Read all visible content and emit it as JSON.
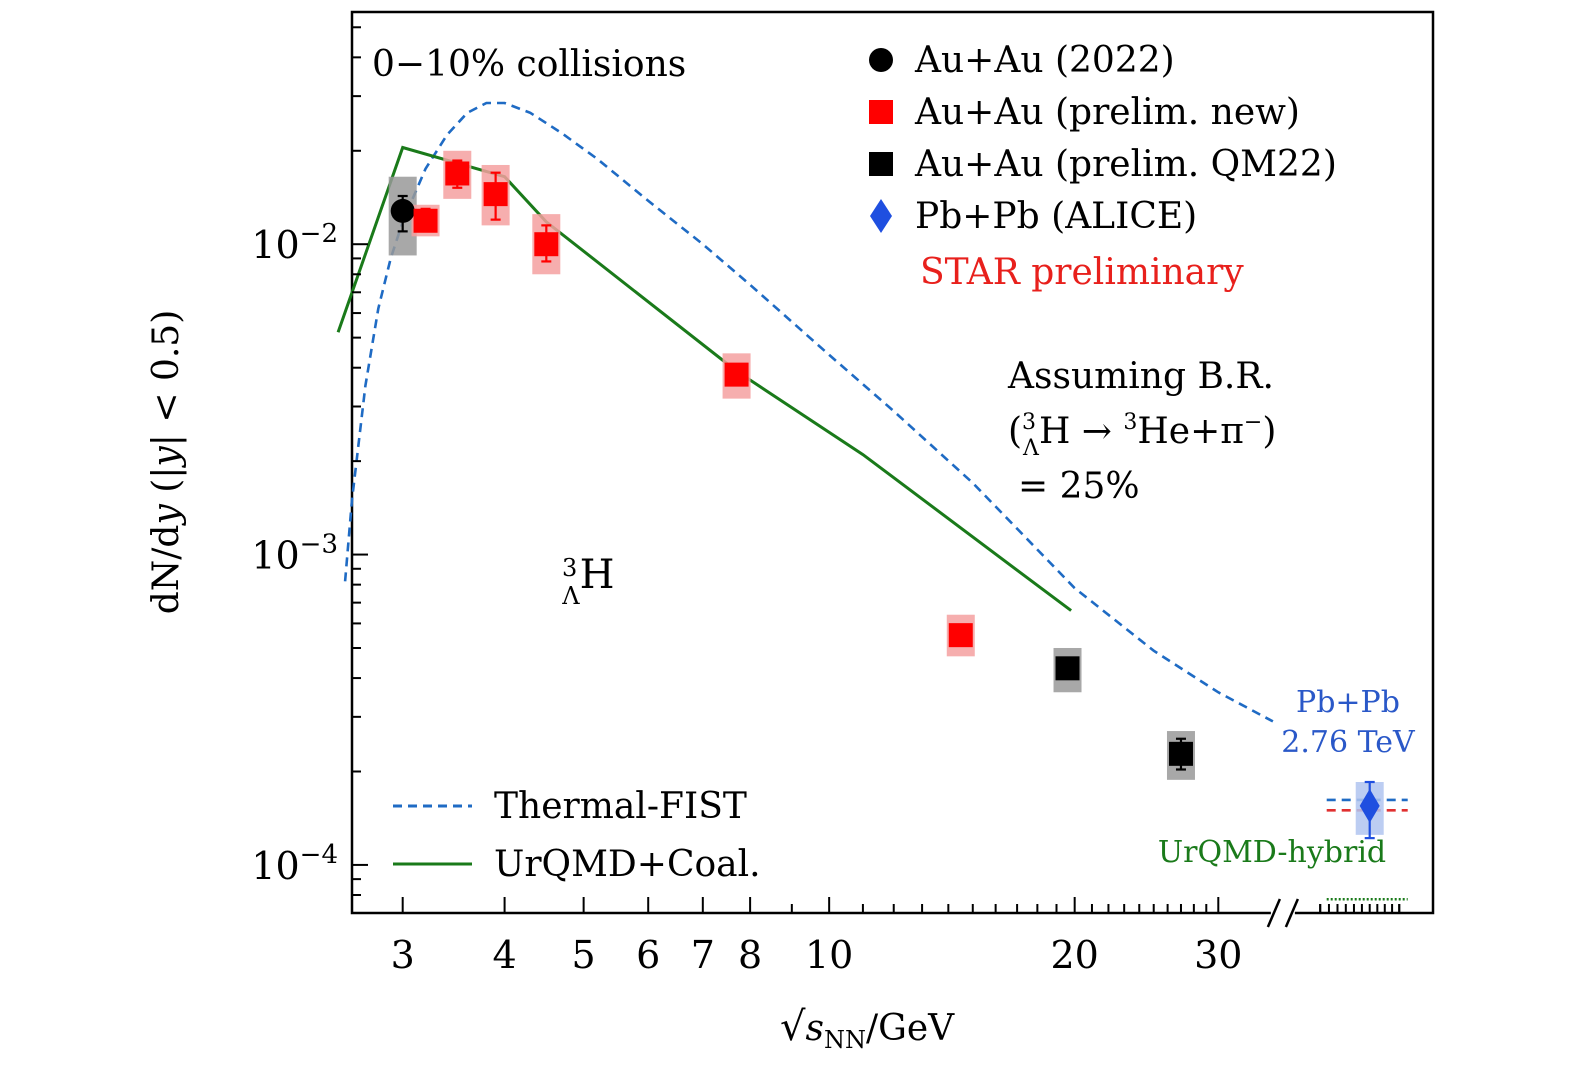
{
  "chart_data": {
    "type": "scatter",
    "title": "",
    "xlabel": "√s_NN/GeV",
    "ylabel": "dN/dy (|y| < 0.5)",
    "x_scale": "log",
    "y_scale": "log",
    "xlim": [
      2.6,
      55
    ],
    "ylim": [
      7e-05,
      0.056
    ],
    "x_ticks": [
      "3",
      "4",
      "5",
      "6",
      "7",
      "8",
      "10",
      "20",
      "30"
    ],
    "y_ticks": [
      {
        "base": "10",
        "exp": "−2",
        "value": 0.01
      },
      {
        "base": "10",
        "exp": "−3",
        "value": 0.001
      },
      {
        "base": "10",
        "exp": "−4",
        "value": 0.0001
      }
    ],
    "annotations": {
      "centrality": "0−10% collisions",
      "prelim": "STAR preliminary",
      "assuming_line1": "Assuming B.R.",
      "assuming_line2_open": "(",
      "assuming_line2_main": "H → ",
      "assuming_line2_he": "He+π",
      "assuming_line2_close": ")",
      "assuming_line3": "= 25%",
      "hypertriton_main": "H",
      "superscript_3": "3",
      "subscript_lambda": "Λ",
      "superscript_minus": "−",
      "pbpb_line1": "Pb+Pb",
      "pbpb_line2": "2.76 TeV",
      "urqmd_hybrid": "UrQMD-hybrid",
      "axis_break": "//",
      "x_sqrt": "√",
      "x_s": "s",
      "x_nn": "NN",
      "x_unit": "/GeV",
      "y_dN": "dN/d",
      "y_y": "y",
      "y_rest": " (|",
      "y_y2": "y",
      "y_end": "| < 0.5)"
    },
    "legend": {
      "placement": "top-right",
      "items": [
        {
          "label": "Au+Au (2022)",
          "marker": "circle",
          "color": "#000000"
        },
        {
          "label": "Au+Au (prelim. new)",
          "marker": "square",
          "color": "#ff0000"
        },
        {
          "label": "Au+Au (prelim. QM22)",
          "marker": "square",
          "color": "#000000"
        },
        {
          "label": "Pb+Pb (ALICE)",
          "marker": "diamond",
          "color": "#1f4fe0"
        }
      ]
    },
    "model_legend": {
      "placement": "bottom-left",
      "items": [
        {
          "label": "Thermal-FIST",
          "style": "dashed",
          "color": "#1f6bc4"
        },
        {
          "label": "UrQMD+Coal.",
          "style": "solid",
          "color": "#1a7a1a"
        }
      ]
    },
    "series": [
      {
        "name": "Au+Au (2022)",
        "marker": "circle",
        "color": "#000000",
        "sys_color": "#999999",
        "points": [
          {
            "x": 3.0,
            "y": 0.0128,
            "err_lo": 0.011,
            "err_hi": 0.0143,
            "sys_lo": 0.0092,
            "sys_hi": 0.0165
          }
        ]
      },
      {
        "name": "Au+Au (prelim. new)",
        "marker": "square",
        "color": "#ff0000",
        "sys_color": "#f5a0a0",
        "points": [
          {
            "x": 3.2,
            "y": 0.0119,
            "err_lo": 0.011,
            "err_hi": 0.013,
            "sys_lo": 0.0106,
            "sys_hi": 0.0134
          },
          {
            "x": 3.5,
            "y": 0.0169,
            "err_lo": 0.0152,
            "err_hi": 0.0186,
            "sys_lo": 0.014,
            "sys_hi": 0.02
          },
          {
            "x": 3.9,
            "y": 0.0145,
            "err_lo": 0.012,
            "err_hi": 0.017,
            "sys_lo": 0.0115,
            "sys_hi": 0.018
          },
          {
            "x": 4.5,
            "y": 0.01,
            "err_lo": 0.0088,
            "err_hi": 0.0115,
            "sys_lo": 0.008,
            "sys_hi": 0.0125
          },
          {
            "x": 7.7,
            "y": 0.0038,
            "err_lo": 0.00355,
            "err_hi": 0.00405,
            "sys_lo": 0.00318,
            "sys_hi": 0.00445
          },
          {
            "x": 14.5,
            "y": 0.00055,
            "err_lo": 0.00052,
            "err_hi": 0.00058,
            "sys_lo": 0.00047,
            "sys_hi": 0.00064
          }
        ]
      },
      {
        "name": "Au+Au (prelim. QM22)",
        "marker": "square",
        "color": "#000000",
        "sys_color": "#999999",
        "points": [
          {
            "x": 19.6,
            "y": 0.00043,
            "err_lo": 0.00041,
            "err_hi": 0.00045,
            "sys_lo": 0.00036,
            "sys_hi": 0.0005
          },
          {
            "x": 27.0,
            "y": 0.000228,
            "err_lo": 0.000203,
            "err_hi": 0.000255,
            "sys_lo": 0.000188,
            "sys_hi": 0.00027
          }
        ]
      },
      {
        "name": "Pb+Pb (ALICE)",
        "marker": "diamond",
        "color": "#1f4fe0",
        "sys_color": "#b0c4f0",
        "points": [
          {
            "x": 46.0,
            "y": 0.000155,
            "err_lo": 0.000122,
            "err_hi": 0.000185,
            "sys_lo": 0.000125,
            "sys_hi": 0.000185
          }
        ]
      }
    ],
    "curves": [
      {
        "name": "Thermal-FIST",
        "style": "dashed",
        "color": "#1f6bc4",
        "x": [
          2.55,
          2.6,
          2.7,
          2.8,
          2.9,
          3.0,
          3.2,
          3.4,
          3.6,
          3.8,
          4.0,
          4.3,
          4.7,
          5.2,
          6.0,
          7.0,
          8.0,
          10.0,
          12.0,
          15.0,
          20.0,
          25.0,
          30.0,
          35.0
        ],
        "y": [
          0.00082,
          0.0015,
          0.0035,
          0.0062,
          0.009,
          0.0118,
          0.0175,
          0.0225,
          0.0265,
          0.0285,
          0.0285,
          0.0265,
          0.0228,
          0.0188,
          0.0138,
          0.01,
          0.0074,
          0.0044,
          0.0029,
          0.0017,
          0.00078,
          0.00049,
          0.00036,
          0.00029
        ]
      },
      {
        "name": "UrQMD+Coal.",
        "style": "solid",
        "color": "#1a7a1a",
        "x": [
          2.5,
          3.0,
          4.0,
          4.5,
          7.7,
          11.0,
          19.8
        ],
        "y": [
          0.0052,
          0.0205,
          0.0165,
          0.0118,
          0.0039,
          0.0021,
          0.00066
        ]
      }
    ],
    "alice_models": [
      {
        "label": "Thermal-FIST",
        "y": 0.000162,
        "color": "#1f6bc4",
        "style": "dashed"
      },
      {
        "label": "UrQMD-hybrid (red)",
        "y": 0.00015,
        "color": "#e03030",
        "style": "dashed"
      },
      {
        "label": "UrQMD-hybrid",
        "y": 7.75e-05,
        "color": "#1a7a1a",
        "style": "dotted"
      }
    ]
  }
}
